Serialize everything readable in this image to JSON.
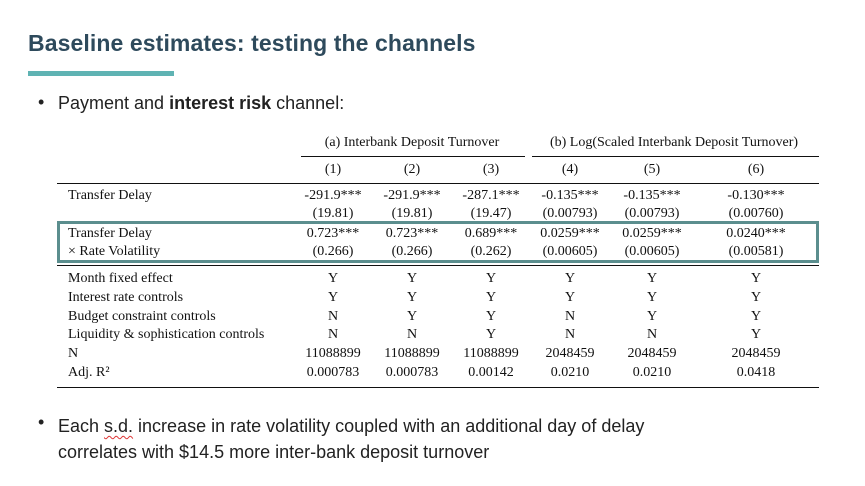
{
  "slide": {
    "title": "Baseline estimates: testing the channels",
    "bullet1_pre": "Payment and ",
    "bullet1_bold": "interest risk",
    "bullet1_post": " channel:",
    "bullet2_pre": "Each ",
    "bullet2_sd": "s.d.",
    "bullet2_line1_post": " increase in rate volatility coupled with an additional day of delay",
    "bullet2_line2": "correlates with $14.5 more inter-bank deposit turnover",
    "accent_color": "#5fb3b3",
    "title_color": "#2e4a5c",
    "highlight_color": "#5b8e8e"
  },
  "table": {
    "group_a": "(a) Interbank Deposit Turnover",
    "group_b": "(b) Log(Scaled Interbank Deposit Turnover)",
    "col_numbers": [
      "(1)",
      "(2)",
      "(3)",
      "(4)",
      "(5)",
      "(6)"
    ],
    "coef_rows": [
      {
        "label": "Transfer Delay",
        "values": [
          "-291.9***",
          "-291.9***",
          "-287.1***",
          "-0.135***",
          "-0.135***",
          "-0.130***"
        ],
        "se": [
          "(19.81)",
          "(19.81)",
          "(19.47)",
          "(0.00793)",
          "(0.00793)",
          "(0.00760)"
        ]
      },
      {
        "label": "Transfer Delay",
        "label2": "× Rate Volatility",
        "values": [
          "0.723***",
          "0.723***",
          "0.689***",
          "0.0259***",
          "0.0259***",
          "0.0240***"
        ],
        "se": [
          "(0.266)",
          "(0.266)",
          "(0.262)",
          "(0.00605)",
          "(0.00605)",
          "(0.00581)"
        ]
      }
    ],
    "control_rows": [
      {
        "label": "Month fixed effect",
        "values": [
          "Y",
          "Y",
          "Y",
          "Y",
          "Y",
          "Y"
        ]
      },
      {
        "label": "Interest rate controls",
        "values": [
          "Y",
          "Y",
          "Y",
          "Y",
          "Y",
          "Y"
        ]
      },
      {
        "label": "Budget constraint controls",
        "values": [
          "N",
          "Y",
          "Y",
          "N",
          "Y",
          "Y"
        ]
      },
      {
        "label": "Liquidity & sophistication controls",
        "values": [
          "N",
          "N",
          "Y",
          "N",
          "N",
          "Y"
        ]
      },
      {
        "label": "N",
        "values": [
          "11088899",
          "11088899",
          "11088899",
          "2048459",
          "2048459",
          "2048459"
        ]
      },
      {
        "label": "Adj. R²",
        "values": [
          "0.000783",
          "0.000783",
          "0.00142",
          "0.0210",
          "0.0210",
          "0.0418"
        ]
      }
    ]
  }
}
